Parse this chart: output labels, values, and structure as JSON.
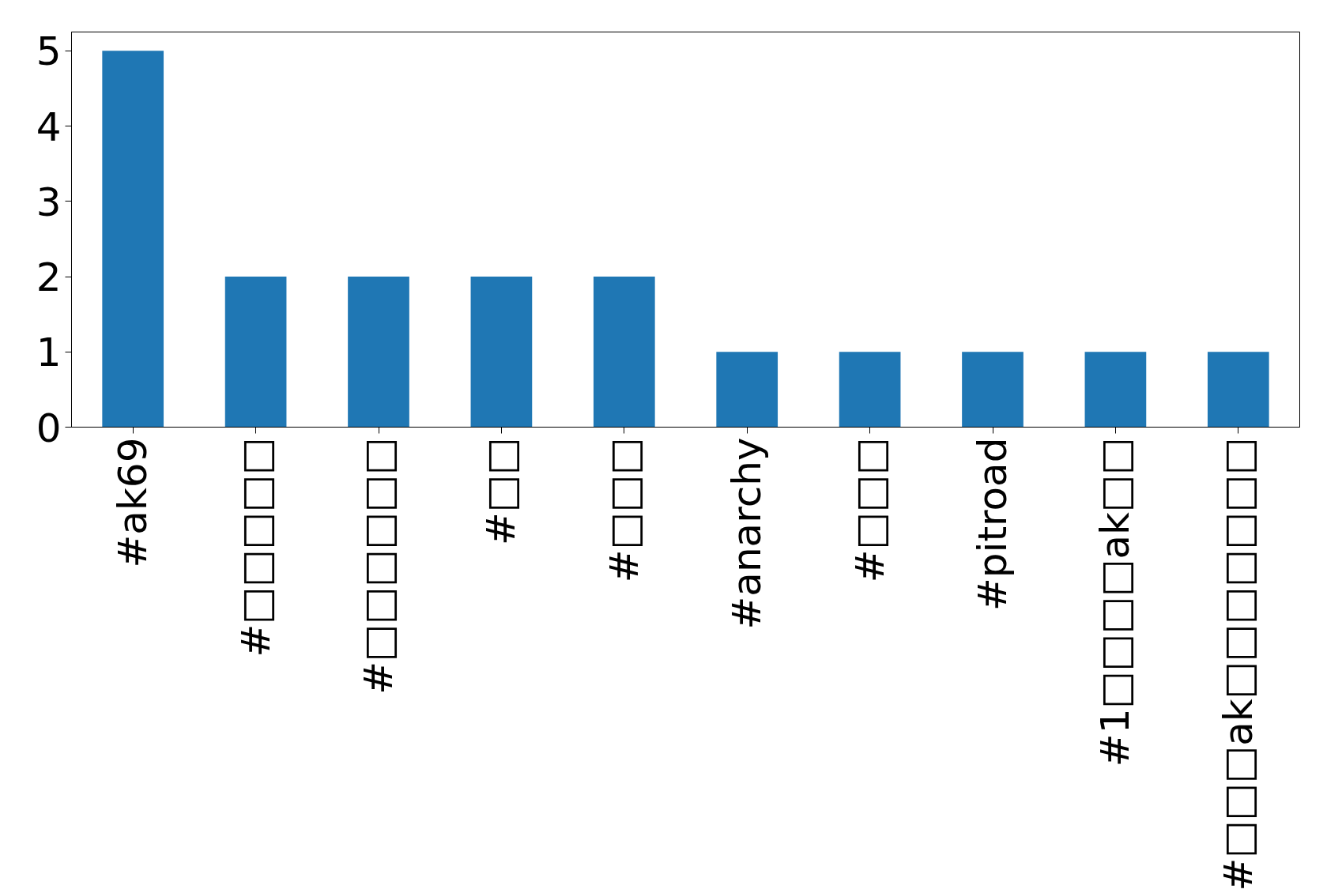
{
  "chart_data": {
    "type": "bar",
    "categories": [
      "#ak69",
      "#□□□□□",
      "#□□□□□□",
      "#□□",
      "#□□□",
      "#anarchy",
      "#□□□",
      "#pitroad",
      "#1□□□□ak□□",
      "#□□□ak□□□□□□□"
    ],
    "values": [
      5,
      2,
      2,
      2,
      2,
      1,
      1,
      1,
      1,
      1
    ],
    "color": "#1f77b4",
    "ylim": [
      0,
      5.25
    ],
    "yticks": [
      0,
      1,
      2,
      3,
      4,
      5
    ],
    "grid": false
  }
}
